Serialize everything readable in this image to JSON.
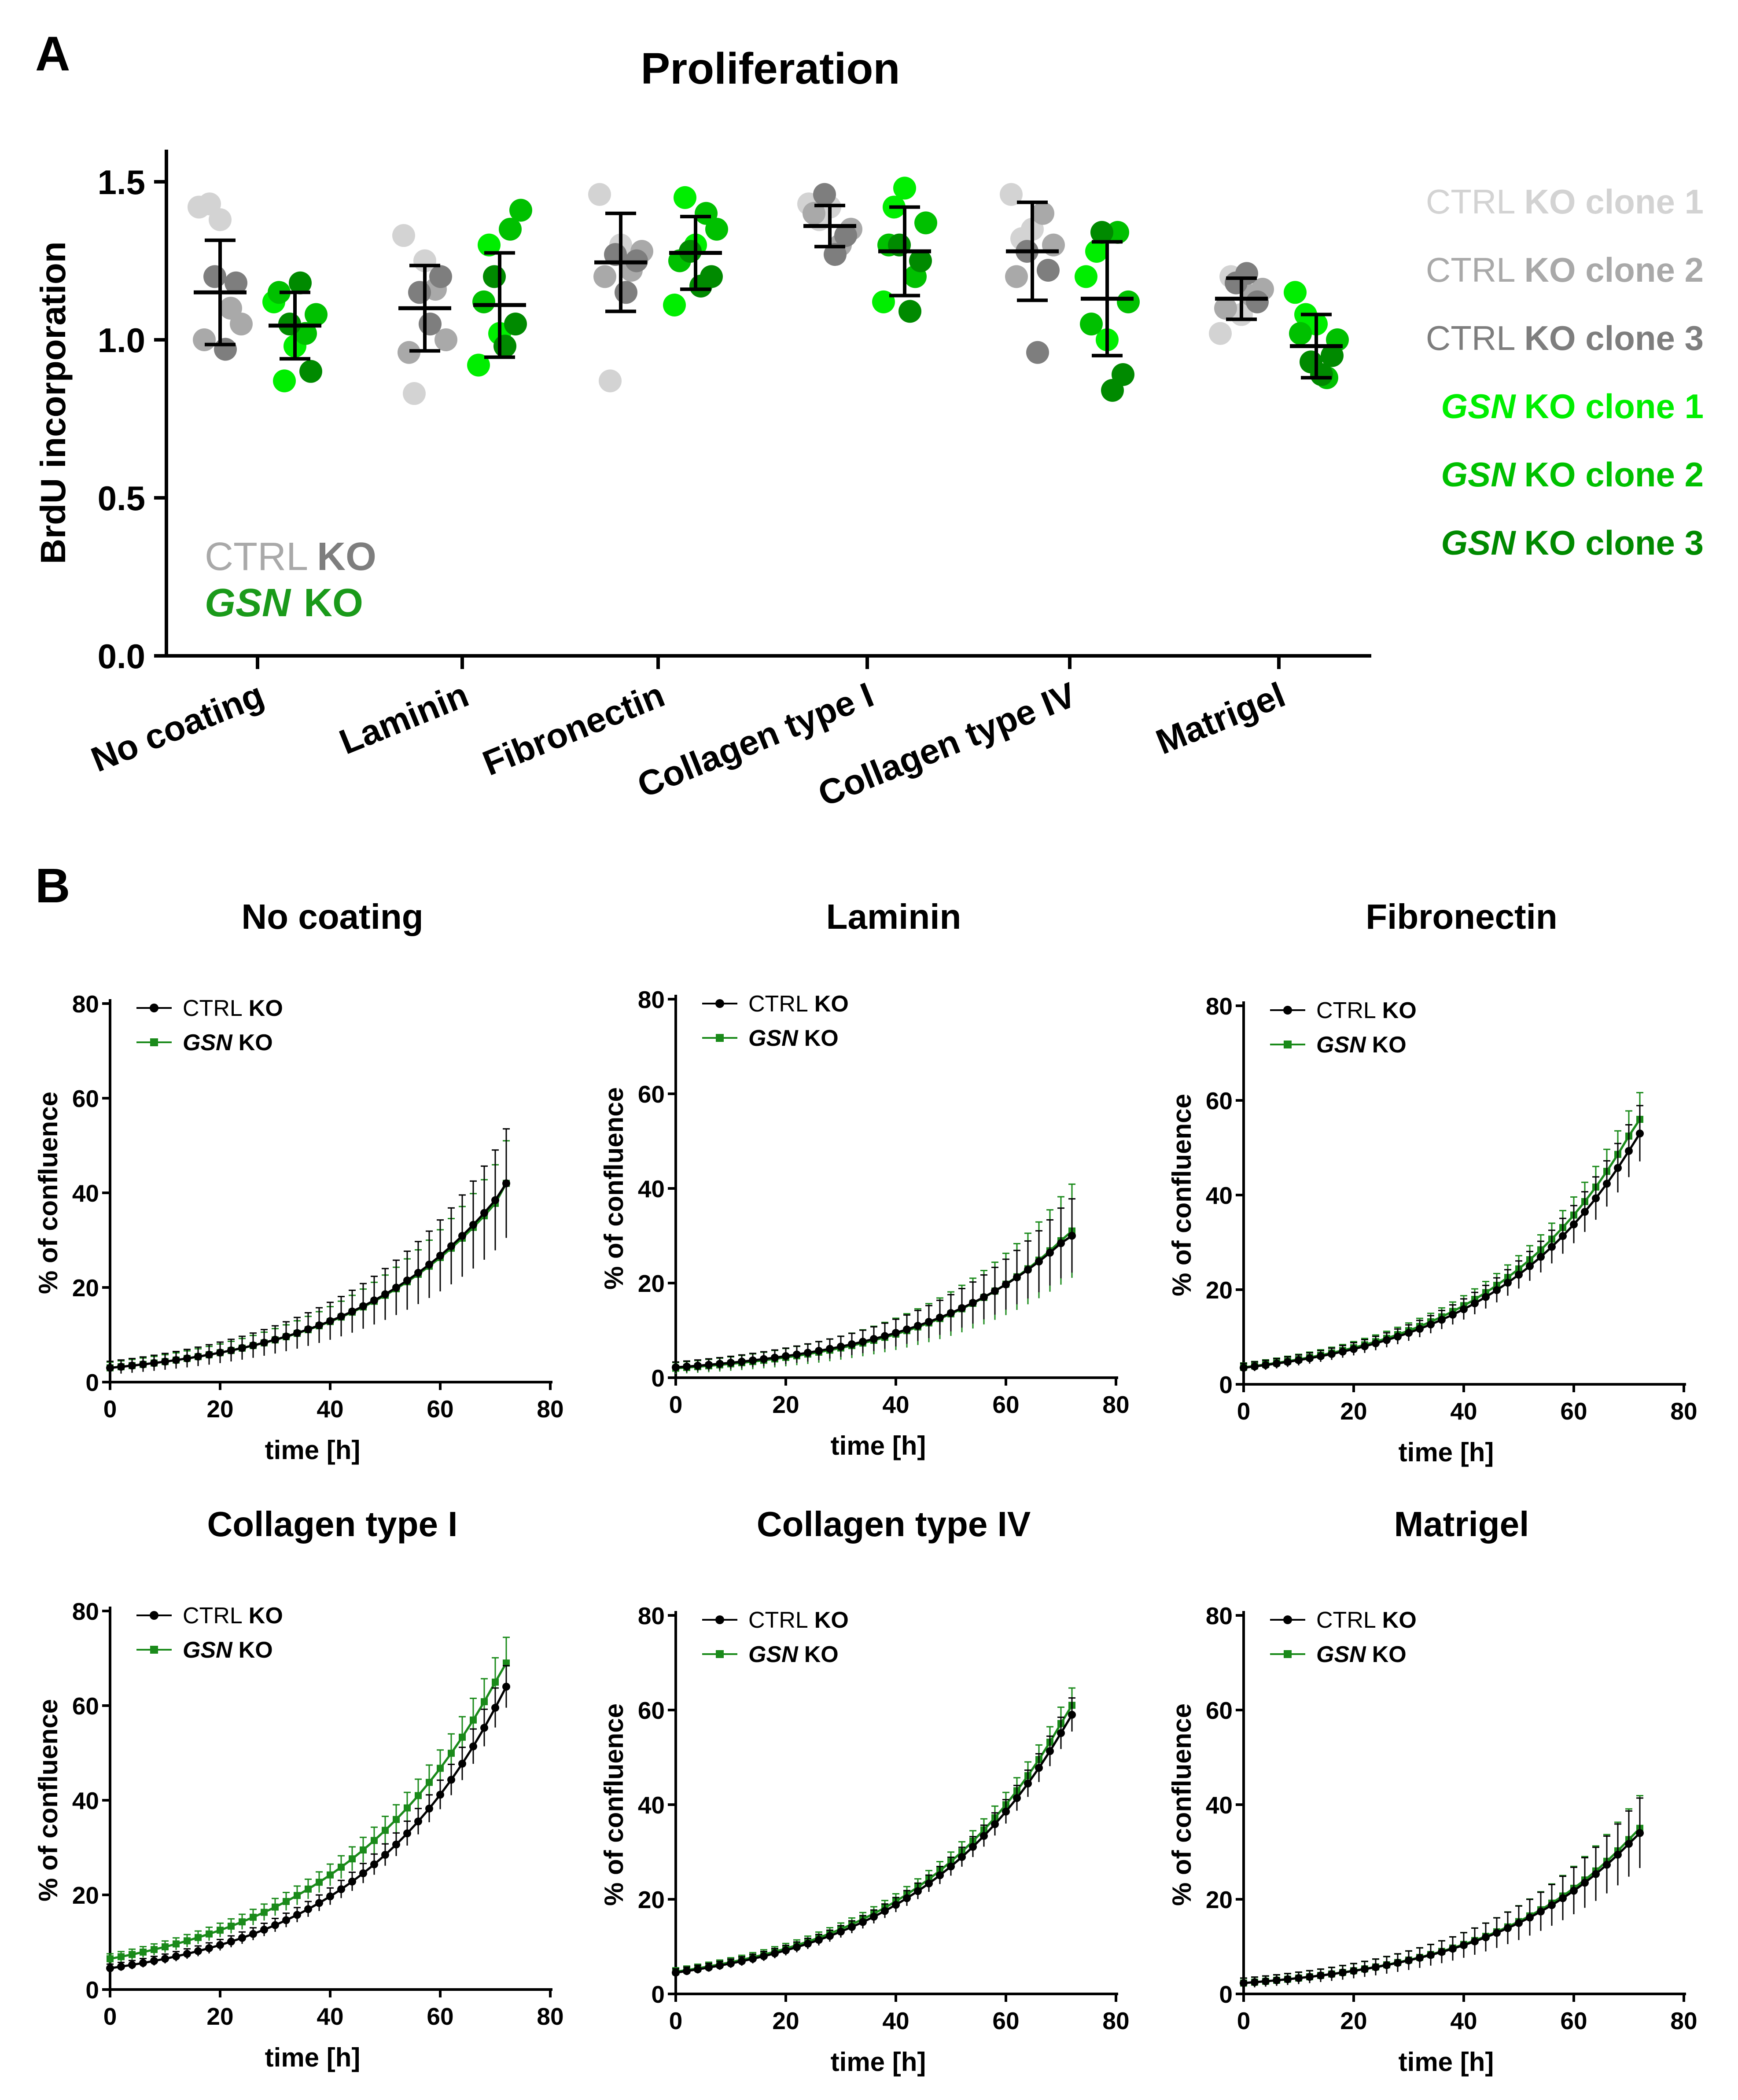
{
  "colors": {
    "ctrl1": "#d3d3d3",
    "ctrl2": "#a9a9a9",
    "ctrl3": "#7e7e7e",
    "gsn1": "#00ee00",
    "gsn2": "#00c000",
    "gsn3": "#008a00",
    "ctrl_line": "#000000",
    "gsn_line": "#1a8a1a",
    "axis": "#000000"
  },
  "panelA": {
    "letter": "A",
    "legend": [
      {
        "prefix": "CTRL",
        "bold": "KO clone 1",
        "italic": false,
        "color_key": "ctrl1"
      },
      {
        "prefix": "CTRL",
        "bold": "KO clone 2",
        "italic": false,
        "color_key": "ctrl2"
      },
      {
        "prefix": "CTRL",
        "bold": "KO clone 3",
        "italic": false,
        "color_key": "ctrl3"
      },
      {
        "prefix": "GSN",
        "bold": "KO clone 1",
        "italic": true,
        "color_key": "gsn1"
      },
      {
        "prefix": "GSN",
        "bold": "KO clone 2",
        "italic": true,
        "color_key": "gsn2"
      },
      {
        "prefix": "GSN",
        "bold": "KO clone 3",
        "italic": true,
        "color_key": "gsn3"
      }
    ],
    "inline_legend": {
      "ctrl_prefix": "CTRL",
      "ctrl_suffix": "KO",
      "gsn_prefix": "GSN",
      "gsn_suffix": "KO"
    }
  },
  "panelB": {
    "letter": "B",
    "series_labels": {
      "ctrl_prefix": "CTRL",
      "ctrl_suffix": "KO",
      "gsn_prefix": "GSN",
      "gsn_suffix": "KO"
    }
  },
  "chart_data": [
    {
      "type": "scatter",
      "title": "Proliferation",
      "ylabel": "BrdU incorporation",
      "ylim": [
        0,
        1.6
      ],
      "yticks": [
        "0.0",
        "0.5",
        "1.0",
        "1.5"
      ],
      "categories": [
        "No coating",
        "Laminin",
        "Fibronectin",
        "Collagen type I",
        "Collagen type IV",
        "Matrigel"
      ],
      "groups": [
        {
          "category": "No coating",
          "ctrl": {
            "mean": 1.15,
            "sd": 0.165,
            "clones": [
              [
                1.42,
                1.43,
                1.38
              ],
              [
                1.1,
                1.05,
                1.0
              ],
              [
                0.97,
                1.18,
                1.2
              ]
            ]
          },
          "gsn": {
            "mean": 1.045,
            "sd": 0.105,
            "clones": [
              [
                1.12,
                0.87,
                0.98
              ],
              [
                1.02,
                1.08,
                1.15
              ],
              [
                1.18,
                0.9,
                1.05
              ]
            ]
          }
        },
        {
          "category": "Laminin",
          "ctrl": {
            "mean": 1.1,
            "sd": 0.135,
            "clones": [
              [
                1.33,
                0.83,
                1.25
              ],
              [
                1.16,
                1.0,
                0.96
              ],
              [
                1.05,
                1.2,
                1.15
              ]
            ]
          },
          "gsn": {
            "mean": 1.11,
            "sd": 0.165,
            "clones": [
              [
                0.92,
                1.3,
                1.02
              ],
              [
                1.35,
                1.41,
                1.12
              ],
              [
                0.98,
                1.05,
                1.2
              ]
            ]
          }
        },
        {
          "category": "Fibronectin",
          "ctrl": {
            "mean": 1.245,
            "sd": 0.155,
            "clones": [
              [
                1.46,
                0.87,
                1.3
              ],
              [
                1.22,
                1.28,
                1.2
              ],
              [
                1.15,
                1.25,
                1.27
              ]
            ]
          },
          "gsn": {
            "mean": 1.275,
            "sd": 0.115,
            "clones": [
              [
                1.11,
                1.45,
                1.3
              ],
              [
                1.4,
                1.35,
                1.25
              ],
              [
                1.17,
                1.2,
                1.28
              ]
            ]
          }
        },
        {
          "category": "Collagen type I",
          "ctrl": {
            "mean": 1.36,
            "sd": 0.065,
            "clones": [
              [
                1.43,
                1.38,
                1.42
              ],
              [
                1.3,
                1.35,
                1.4
              ],
              [
                1.27,
                1.33,
                1.46
              ]
            ]
          },
          "gsn": {
            "mean": 1.28,
            "sd": 0.14,
            "clones": [
              [
                1.12,
                1.42,
                1.48
              ],
              [
                1.2,
                1.37,
                1.3
              ],
              [
                1.09,
                1.25,
                1.3
              ]
            ]
          }
        },
        {
          "category": "Collagen type IV",
          "ctrl": {
            "mean": 1.28,
            "sd": 0.155,
            "clones": [
              [
                1.46,
                1.32,
                1.35
              ],
              [
                1.4,
                1.3,
                1.2
              ],
              [
                0.96,
                1.22,
                1.28
              ]
            ]
          },
          "gsn": {
            "mean": 1.13,
            "sd": 0.18,
            "clones": [
              [
                1.2,
                1.28,
                1.0
              ],
              [
                1.34,
                1.12,
                1.05
              ],
              [
                0.84,
                0.89,
                1.34
              ]
            ]
          }
        },
        {
          "category": "Matrigel",
          "ctrl": {
            "mean": 1.13,
            "sd": 0.065,
            "clones": [
              [
                1.02,
                1.2,
                1.08
              ],
              [
                1.14,
                1.16,
                1.1
              ],
              [
                1.21,
                1.12,
                1.18
              ]
            ]
          },
          "gsn": {
            "mean": 0.98,
            "sd": 0.1,
            "clones": [
              [
                1.15,
                1.08,
                1.05
              ],
              [
                0.88,
                1.0,
                1.02
              ],
              [
                0.89,
                0.95,
                0.93
              ]
            ]
          }
        }
      ]
    },
    {
      "type": "line",
      "panels": [
        {
          "title": "No coating",
          "xlabel": "time [h]",
          "ylabel": "% of confluence",
          "xlim": [
            0,
            80
          ],
          "ylim": [
            0,
            80
          ],
          "xticks": [
            "0",
            "20",
            "40",
            "60",
            "80"
          ],
          "yticks": [
            "0",
            "20",
            "40",
            "60",
            "80"
          ],
          "ctrl_fit": {
            "a": 3.0,
            "k": 0.0364
          },
          "gsn_fit": {
            "a": 3.0,
            "k": 0.0361
          },
          "ctrl_err": 0.26,
          "gsn_err": 0.2,
          "ctrl_end": 42,
          "gsn_end": 42
        },
        {
          "title": "Laminin",
          "xlabel": "time [h]",
          "ylabel": "% of confluence",
          "xlim": [
            0,
            80
          ],
          "ylim": [
            0,
            80
          ],
          "xticks": [
            "0",
            "20",
            "40",
            "60",
            "80"
          ],
          "yticks": [
            "0",
            "20",
            "40",
            "60",
            "80"
          ],
          "ctrl_fit": {
            "a": 2.2,
            "k": 0.0366
          },
          "gsn_fit": {
            "a": 2.0,
            "k": 0.0382
          },
          "ctrl_err": 0.24,
          "gsn_err": 0.3,
          "ctrl_end": 30,
          "gsn_end": 31
        },
        {
          "title": "Fibronectin",
          "xlabel": "time [h]",
          "ylabel": "% of confluence",
          "xlim": [
            0,
            80
          ],
          "ylim": [
            0,
            80
          ],
          "xticks": [
            "0",
            "20",
            "40",
            "60",
            "80"
          ],
          "yticks": [
            "0",
            "20",
            "40",
            "60",
            "80"
          ],
          "ctrl_fit": {
            "a": 3.5,
            "k": 0.0378
          },
          "gsn_fit": {
            "a": 3.6,
            "k": 0.0383
          },
          "ctrl_err": 0.1,
          "gsn_err": 0.09,
          "ctrl_end": 53,
          "gsn_end": 56
        },
        {
          "title": "Collagen type I",
          "xlabel": "time [h]",
          "ylabel": "% of confluence",
          "xlim": [
            0,
            80
          ],
          "ylim": [
            0,
            80
          ],
          "xticks": [
            "0",
            "20",
            "40",
            "60",
            "80"
          ],
          "yticks": [
            "0",
            "20",
            "40",
            "60",
            "80"
          ],
          "ctrl_fit": {
            "a": 4.5,
            "k": 0.0369
          },
          "gsn_fit": {
            "a": 6.5,
            "k": 0.0329
          },
          "ctrl_err": 0.06,
          "gsn_err": 0.07,
          "ctrl_end": 64,
          "gsn_end": 69
        },
        {
          "title": "Collagen type IV",
          "xlabel": "time [h]",
          "ylabel": "% of confluence",
          "xlim": [
            0,
            80
          ],
          "ylim": [
            0,
            80
          ],
          "xticks": [
            "0",
            "20",
            "40",
            "60",
            "80"
          ],
          "yticks": [
            "0",
            "20",
            "40",
            "60",
            "80"
          ],
          "ctrl_fit": {
            "a": 4.5,
            "k": 0.0358
          },
          "gsn_fit": {
            "a": 4.7,
            "k": 0.0357
          },
          "ctrl_err": 0.05,
          "gsn_err": 0.05,
          "ctrl_end": 59,
          "gsn_end": 61
        },
        {
          "title": "Matrigel",
          "xlabel": "time [h]",
          "ylabel": "% of confluence",
          "xlim": [
            0,
            80
          ],
          "ylim": [
            0,
            80
          ],
          "xticks": [
            "0",
            "20",
            "40",
            "60",
            "80"
          ],
          "yticks": [
            "0",
            "20",
            "40",
            "60",
            "80"
          ],
          "ctrl_fit": {
            "a": 2.3,
            "k": 0.0375
          },
          "gsn_fit": {
            "a": 2.3,
            "k": 0.0379
          },
          "ctrl_err": 0.2,
          "gsn_err": 0.18,
          "ctrl_end": 34,
          "gsn_end": 35
        }
      ]
    }
  ]
}
